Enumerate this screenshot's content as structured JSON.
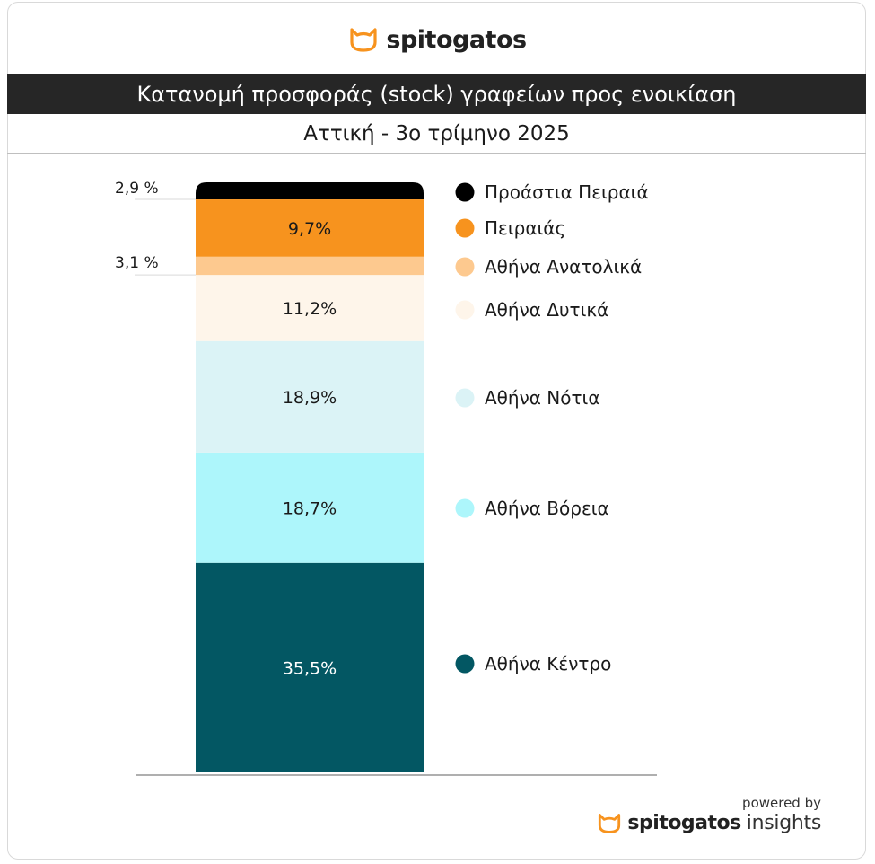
{
  "brand": {
    "name": "spitogatos",
    "logo_icon": "cat-head-icon",
    "logo_color": "#F7931E"
  },
  "title": "Κατανομή προσφοράς (stock) γραφείων  προς ενοικίαση",
  "subtitle": "Αττική - 3ο τρίμηνο 2025",
  "footer": {
    "powered_by": "powered by",
    "brand_name": "spitogatos",
    "brand_suffix": "insights"
  },
  "chart_data": {
    "type": "bar",
    "stacked": true,
    "unit": "%",
    "legend_position": "right",
    "series": [
      {
        "name": "Αθήνα Κέντρο",
        "value": 35.5,
        "label": "35,5%",
        "color": "#035763",
        "label_color": "#ffffff"
      },
      {
        "name": "Αθήνα Βόρεια",
        "value": 18.7,
        "label": "18,7%",
        "color": "#ADF6FB",
        "label_color": "#1a1a1a"
      },
      {
        "name": "Αθήνα Νότια",
        "value": 18.9,
        "label": "18,9%",
        "color": "#DBF3F6",
        "label_color": "#1a1a1a"
      },
      {
        "name": "Αθήνα Δυτικά",
        "value": 11.2,
        "label": "11,2%",
        "color": "#FEF5EA",
        "label_color": "#1a1a1a"
      },
      {
        "name": "Αθήνα Ανατολικά",
        "value": 3.1,
        "label": "3,1 %",
        "color": "#FDC98F",
        "label_color": "#1a1a1a",
        "label_outside": true
      },
      {
        "name": "Πειραιάς",
        "value": 9.7,
        "label": "9,7%",
        "color": "#F7931E",
        "label_color": "#1a1a1a"
      },
      {
        "name": "Προάστια Πειραιά",
        "value": 2.9,
        "label": "2,9 %",
        "color": "#000000",
        "label_color": "#1a1a1a",
        "label_outside": true
      }
    ]
  }
}
